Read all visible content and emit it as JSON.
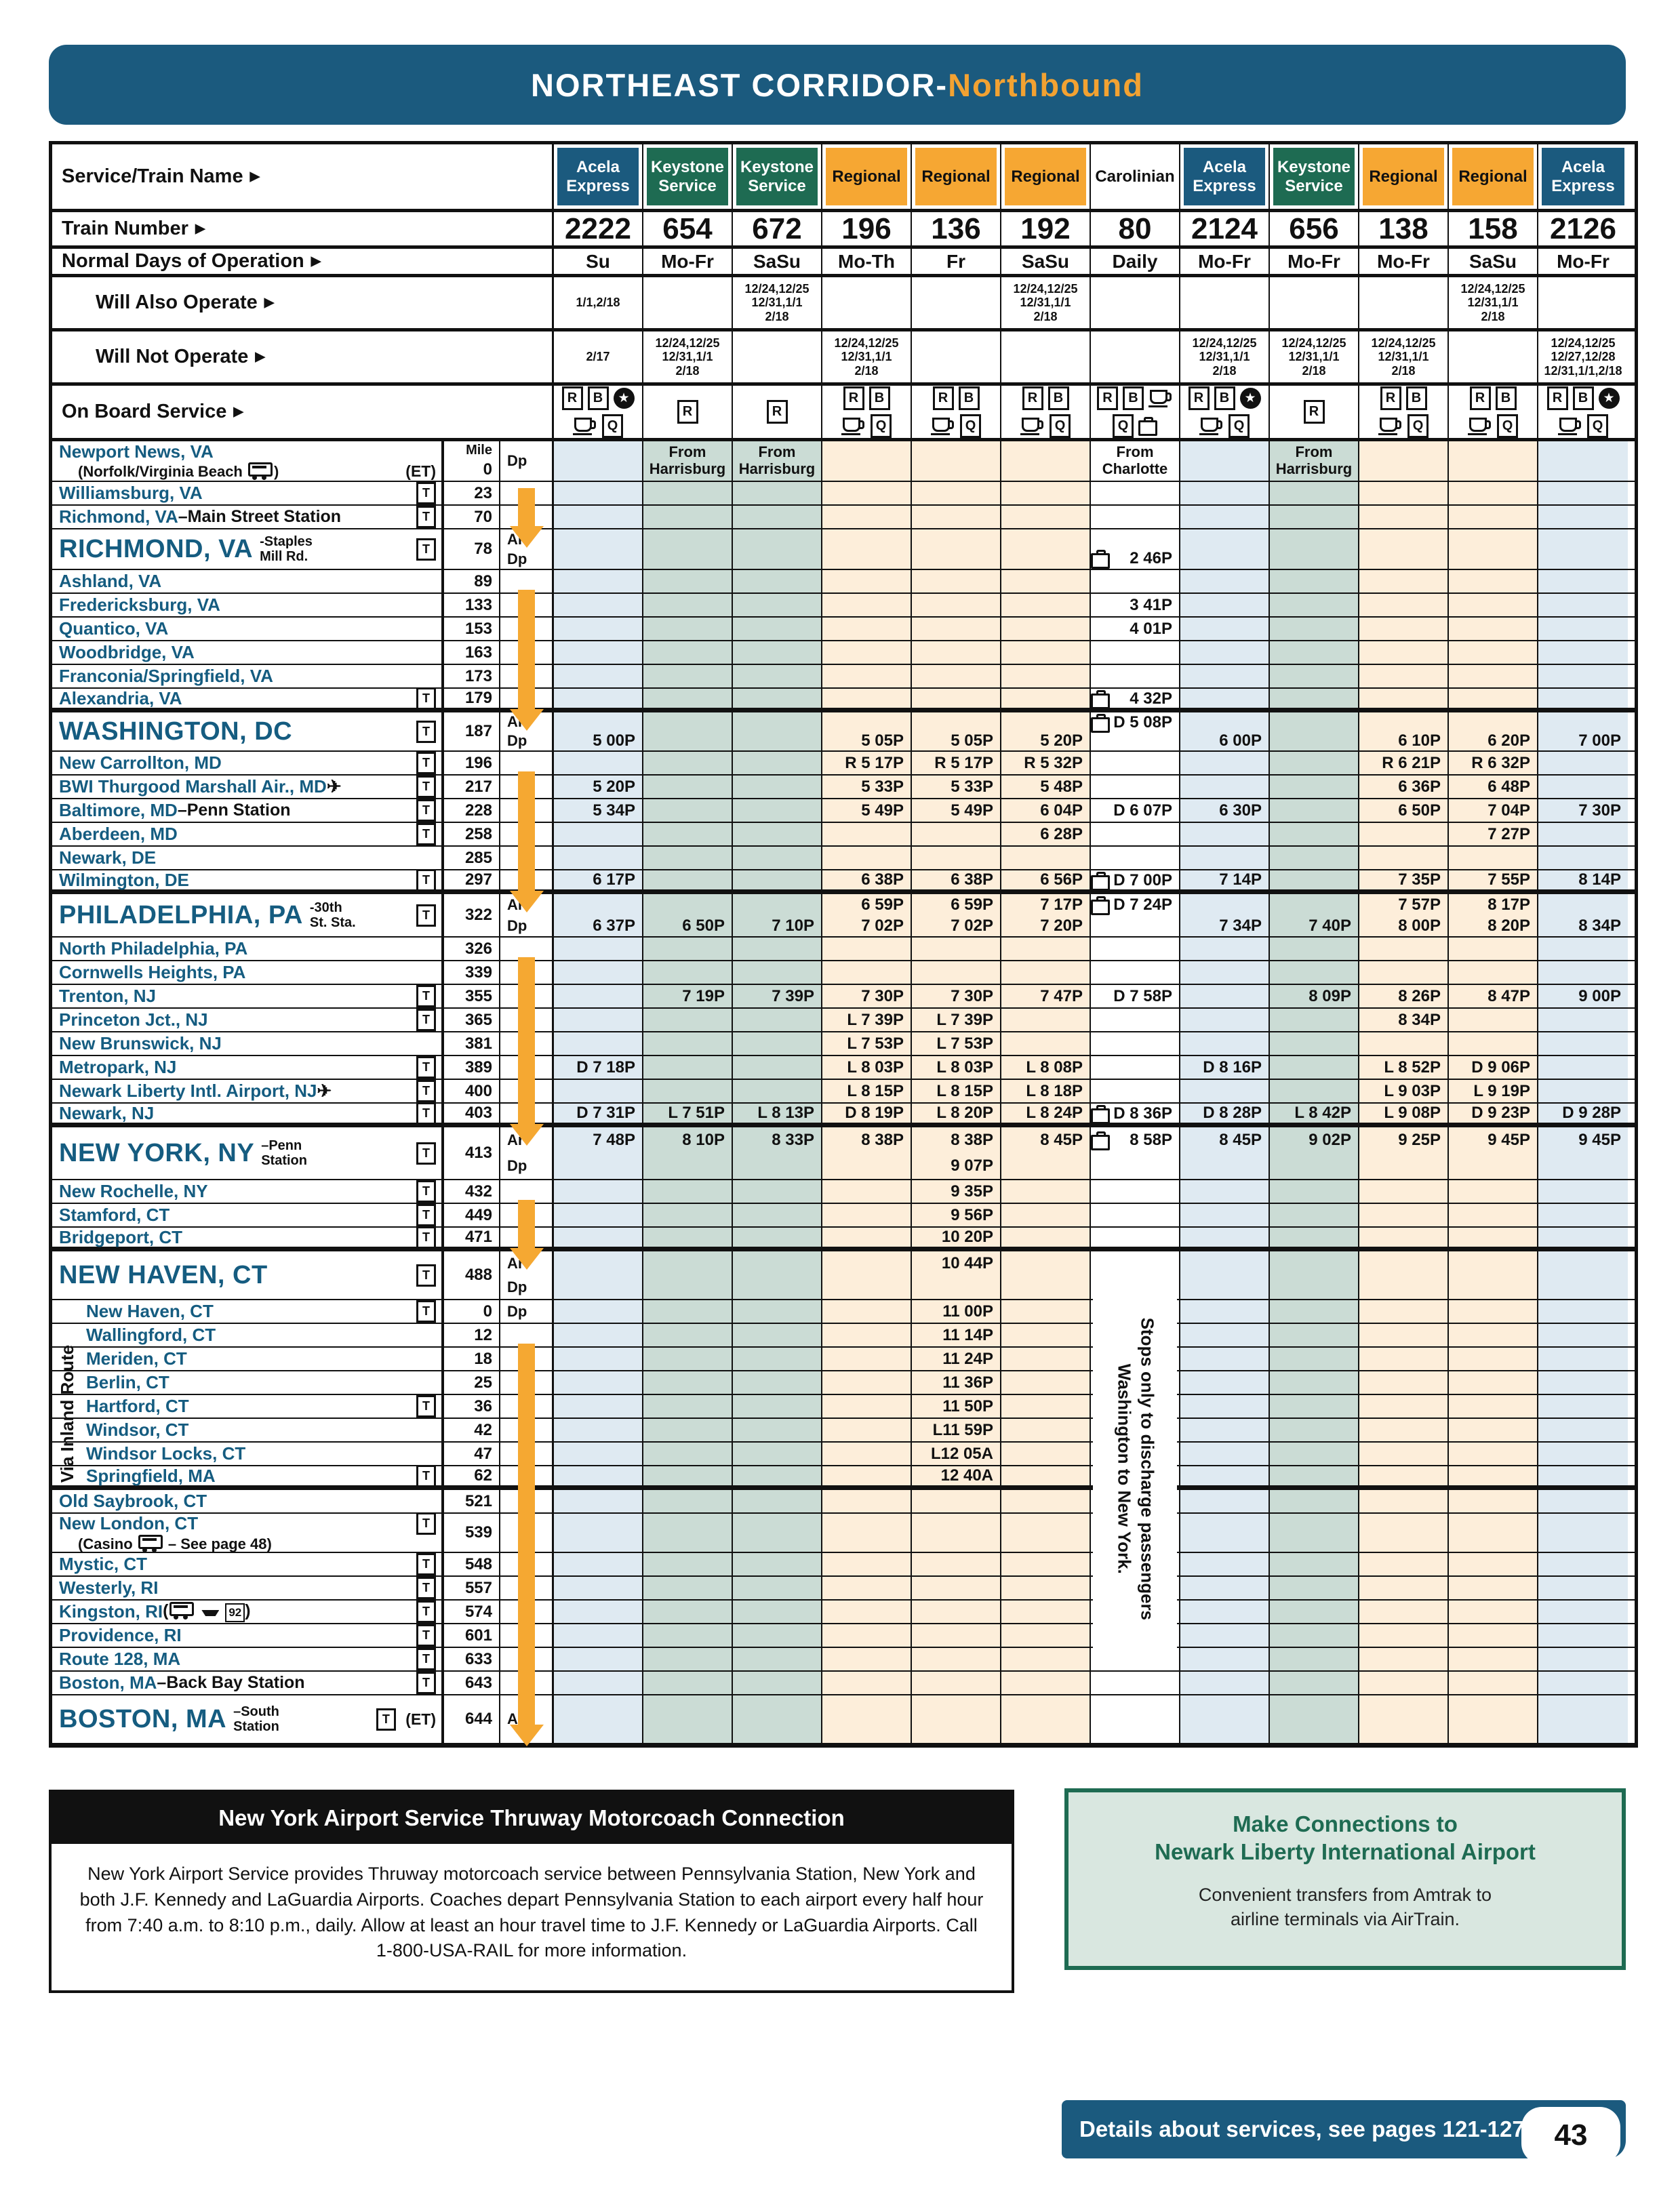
{
  "page": {
    "title_main": "NORTHEAST CORRIDOR-",
    "title_accent": "Northbound",
    "footer_text": "Details about services, see pages 121-127",
    "page_number": "43"
  },
  "colors": {
    "dark_blue": "#1b5a7e",
    "orange": "#f5a832",
    "keystone_green": "#1e6b52",
    "tint_acela": "#dfeaf2",
    "tint_keystone": "#cbdcd5",
    "tint_regional": "#fdeeda",
    "station_blue": "#155c80"
  },
  "header_labels": {
    "service": "Service/Train Name",
    "number": "Train Number",
    "days": "Normal Days of Operation",
    "also": "Will Also Operate",
    "not_operate": "Will Not Operate",
    "obs": "On Board Service"
  },
  "mile_header": "Mile",
  "via_inland": "Via Inland Route",
  "discharge_note": "Stops only to discharge passengers\nWashington to New York.",
  "columns": [
    {
      "name": "Acela\nExpress",
      "type": "acela",
      "number": "2222",
      "days": "Su",
      "also": "1/1,2/18",
      "not": "2/17",
      "service": [
        [
          "R",
          "B",
          "star"
        ],
        [
          "cup",
          "Q"
        ]
      ]
    },
    {
      "name": "Keystone\nService",
      "type": "keystone",
      "number": "654",
      "days": "Mo-Fr",
      "also": "",
      "not": "12/24,12/25\n12/31,1/1\n2/18",
      "service": [
        [
          "R"
        ]
      ]
    },
    {
      "name": "Keystone\nService",
      "type": "keystone",
      "number": "672",
      "days": "SaSu",
      "also": "12/24,12/25\n12/31,1/1\n2/18",
      "not": "",
      "service": [
        [
          "R"
        ]
      ]
    },
    {
      "name": "Regional",
      "type": "regional",
      "number": "196",
      "days": "Mo-Th",
      "also": "",
      "not": "12/24,12/25\n12/31,1/1\n2/18",
      "service": [
        [
          "R",
          "B"
        ],
        [
          "cup",
          "Q"
        ]
      ]
    },
    {
      "name": "Regional",
      "type": "regional",
      "number": "136",
      "days": "Fr",
      "also": "",
      "not": "",
      "service": [
        [
          "R",
          "B"
        ],
        [
          "cup",
          "Q"
        ]
      ]
    },
    {
      "name": "Regional",
      "type": "regional",
      "number": "192",
      "days": "SaSu",
      "also": "12/24,12/25\n12/31,1/1\n2/18",
      "not": "",
      "service": [
        [
          "R",
          "B"
        ],
        [
          "cup",
          "Q"
        ]
      ]
    },
    {
      "name": "Carolinian",
      "type": "carolinian",
      "number": "80",
      "days": "Daily",
      "also": "",
      "not": "",
      "service": [
        [
          "R",
          "B",
          "cup"
        ],
        [
          "Q",
          "bag"
        ]
      ]
    },
    {
      "name": "Acela\nExpress",
      "type": "acela",
      "number": "2124",
      "days": "Mo-Fr",
      "also": "",
      "not": "12/24,12/25\n12/31,1/1\n2/18",
      "service": [
        [
          "R",
          "B",
          "star"
        ],
        [
          "cup",
          "Q"
        ]
      ]
    },
    {
      "name": "Keystone\nService",
      "type": "keystone",
      "number": "656",
      "days": "Mo-Fr",
      "also": "",
      "not": "12/24,12/25\n12/31,1/1\n2/18",
      "service": [
        [
          "R"
        ]
      ]
    },
    {
      "name": "Regional",
      "type": "regional",
      "number": "138",
      "days": "Mo-Fr",
      "also": "",
      "not": "12/24,12/25\n12/31,1/1\n2/18",
      "service": [
        [
          "R",
          "B"
        ],
        [
          "cup",
          "Q"
        ]
      ]
    },
    {
      "name": "Regional",
      "type": "regional",
      "number": "158",
      "days": "SaSu",
      "also": "12/24,12/25\n12/31,1/1\n2/18",
      "not": "",
      "service": [
        [
          "R",
          "B"
        ],
        [
          "cup",
          "Q"
        ]
      ]
    },
    {
      "name": "Acela\nExpress",
      "type": "acela",
      "number": "2126",
      "days": "Mo-Fr",
      "also": "",
      "not": "12/24,12/25\n12/27,12/28\n12/31,1/1,2/18",
      "service": [
        [
          "R",
          "B",
          "star"
        ],
        [
          "cup",
          "Q"
        ]
      ]
    }
  ],
  "rows": [
    {
      "n": "Newport News, VA",
      "sub": "(Norfolk/Virginia Beach [bus])",
      "sr": "(ET)",
      "mile": "Mile\n0",
      "ardp": "Dp",
      "h": 60,
      "t": [
        "",
        "From\nHarrisburg",
        "From\nHarrisburg",
        "",
        "",
        "",
        "From\nCharlotte",
        "",
        "From\nHarrisburg",
        "",
        "",
        ""
      ]
    },
    {
      "n": "Williamsburg, VA",
      "right": "[T]",
      "mile": "23",
      "h": 35
    },
    {
      "n": "Richmond, VA",
      "r": "–Main Street Station",
      "right": "[T]",
      "mile": "70",
      "h": 35
    },
    {
      "n": "RICHMOND, VA",
      "big": true,
      "sub": "-Staples\nMill Rd.",
      "right": "[T]",
      "mile": "78",
      "ardp": "Ar\nDp",
      "h": 60,
      "t": [
        [
          "",
          ""
        ],
        [
          "",
          ""
        ],
        [
          "",
          ""
        ],
        [
          "",
          ""
        ],
        [
          "",
          ""
        ],
        [
          "",
          ""
        ],
        [
          "",
          "[bag] 2 46P"
        ],
        [
          "",
          ""
        ],
        [
          "",
          ""
        ],
        [
          "",
          ""
        ],
        [
          "",
          ""
        ],
        [
          "",
          ""
        ]
      ]
    },
    {
      "n": "Ashland, VA",
      "mile": "89",
      "h": 35
    },
    {
      "n": "Fredericksburg, VA",
      "mile": "133",
      "h": 35,
      "t": [
        "",
        "",
        "",
        "",
        "",
        "",
        "3 41P",
        "",
        "",
        "",
        "",
        ""
      ]
    },
    {
      "n": "Quantico, VA",
      "mile": "153",
      "h": 35,
      "t": [
        "",
        "",
        "",
        "",
        "",
        "",
        "4 01P",
        "",
        "",
        "",
        "",
        ""
      ]
    },
    {
      "n": "Woodbridge, VA",
      "mile": "163",
      "h": 35
    },
    {
      "n": "Franconia/Springfield, VA",
      "mile": "173",
      "h": 35
    },
    {
      "n": "Alexandria, VA",
      "right": "[T]",
      "mile": "179",
      "h": 35,
      "thick": true,
      "t": [
        "",
        "",
        "",
        "",
        "",
        "",
        "[bag] 4 32P",
        "",
        "",
        "",
        "",
        ""
      ]
    },
    {
      "n": "WASHINGTON, DC",
      "big": true,
      "right": "[T]",
      "mile": "187",
      "ardp": "Ar\nDp",
      "h": 58,
      "t": [
        [
          "",
          "5 00P"
        ],
        [
          "",
          ""
        ],
        [
          "",
          ""
        ],
        [
          "",
          "5 05P"
        ],
        [
          "",
          "5 05P"
        ],
        [
          "",
          "5 20P"
        ],
        [
          "[bag]D 5 08P",
          ""
        ],
        [
          "",
          "6 00P"
        ],
        [
          "",
          ""
        ],
        [
          "",
          "6 10P"
        ],
        [
          "",
          "6 20P"
        ],
        [
          "",
          "7 00P"
        ]
      ]
    },
    {
      "n": "New Carrollton, MD",
      "right": "[T]",
      "mile": "196",
      "h": 35,
      "t": [
        "",
        "",
        "",
        "R 5 17P",
        "R 5 17P",
        "R 5 32P",
        "",
        "",
        "",
        "R 6 21P",
        "R 6 32P",
        ""
      ]
    },
    {
      "n": "BWI Thurgood Marshall Air., MD",
      "r": "[plane]",
      "right": "[T]",
      "mile": "217",
      "h": 35,
      "t": [
        "5 20P",
        "",
        "",
        "5 33P",
        "5 33P",
        "5 48P",
        "",
        "",
        "",
        "6 36P",
        "6 48P",
        ""
      ]
    },
    {
      "n": "Baltimore, MD",
      "r": "–Penn Station",
      "right": "[T]",
      "mile": "228",
      "h": 35,
      "t": [
        "5 34P",
        "",
        "",
        "5 49P",
        "5 49P",
        "6 04P",
        "D 6 07P",
        "6 30P",
        "",
        "6 50P",
        "7 04P",
        "7 30P"
      ]
    },
    {
      "n": "Aberdeen, MD",
      "right": "[T]",
      "mile": "258",
      "h": 35,
      "t": [
        "",
        "",
        "",
        "",
        "",
        "6 28P",
        "",
        "",
        "",
        "",
        "7 27P",
        ""
      ]
    },
    {
      "n": "Newark, DE",
      "mile": "285",
      "h": 35
    },
    {
      "n": "Wilmington, DE",
      "right": "[T]",
      "mile": "297",
      "h": 35,
      "thick": true,
      "t": [
        "6 17P",
        "",
        "",
        "6 38P",
        "6 38P",
        "6 56P",
        "[bag]D 7 00P",
        "7 14P",
        "",
        "7 35P",
        "7 55P",
        "8 14P"
      ]
    },
    {
      "n": "PHILADELPHIA, PA",
      "big": true,
      "sub": "-30th\nSt. Sta.",
      "right": "[T]",
      "mile": "322",
      "ardp": "Ar\nDp",
      "h": 64,
      "t": [
        [
          "",
          "6 37P"
        ],
        [
          "",
          "6 50P"
        ],
        [
          "",
          "7 10P"
        ],
        [
          "6 59P",
          "7 02P"
        ],
        [
          "6 59P",
          "7 02P"
        ],
        [
          "7 17P",
          "7 20P"
        ],
        [
          "[bag]D 7 24P",
          ""
        ],
        [
          "",
          "7 34P"
        ],
        [
          "",
          "7 40P"
        ],
        [
          "7 57P",
          "8 00P"
        ],
        [
          "8 17P",
          "8 20P"
        ],
        [
          "",
          "8 34P"
        ]
      ]
    },
    {
      "n": "North Philadelphia, PA",
      "mile": "326",
      "h": 35
    },
    {
      "n": "Cornwells Heights, PA",
      "mile": "339",
      "h": 35
    },
    {
      "n": "Trenton, NJ",
      "right": "[T]",
      "mile": "355",
      "h": 35,
      "t": [
        "",
        "7 19P",
        "7 39P",
        "7 30P",
        "7 30P",
        "7 47P",
        "D 7 58P",
        "",
        "8 09P",
        "8 26P",
        "8 47P",
        "9 00P"
      ]
    },
    {
      "n": "Princeton Jct., NJ",
      "right": "[T]",
      "mile": "365",
      "h": 35,
      "t": [
        "",
        "",
        "",
        "L 7 39P",
        "L 7 39P",
        "",
        "",
        "",
        "",
        "8 34P",
        "",
        ""
      ]
    },
    {
      "n": "New Brunswick, NJ",
      "mile": "381",
      "h": 35,
      "t": [
        "",
        "",
        "",
        "L 7 53P",
        "L 7 53P",
        "",
        "",
        "",
        "",
        "",
        "",
        ""
      ]
    },
    {
      "n": "Metropark, NJ",
      "right": "[T]",
      "mile": "389",
      "h": 35,
      "t": [
        "D 7 18P",
        "",
        "",
        "L 8 03P",
        "L 8 03P",
        "L 8 08P",
        "",
        "D 8 16P",
        "",
        "L 8 52P",
        "D 9 06P",
        ""
      ]
    },
    {
      "n": "Newark Liberty Intl. Airport, NJ",
      "r": " [plane]",
      "right": "[T]",
      "mile": "400",
      "h": 35,
      "t": [
        "",
        "",
        "",
        "L 8 15P",
        "L 8 15P",
        "L 8 18P",
        "",
        "",
        "",
        "L 9 03P",
        "L 9 19P",
        ""
      ]
    },
    {
      "n": "Newark, NJ",
      "right": "[T]",
      "mile": "403",
      "h": 35,
      "thick": true,
      "t": [
        "D 7 31P",
        "L 7 51P",
        "L 8 13P",
        "D 8 19P",
        "L 8 20P",
        "L 8 24P",
        "[bag]D 8 36P",
        "D 8 28P",
        "L 8 42P",
        "L 9 08P",
        "D 9 23P",
        "D 9 28P"
      ]
    },
    {
      "n": "NEW YORK, NY",
      "big": true,
      "sub": "–Penn\nStation",
      "right": "[T]",
      "mile": "413",
      "ardp": "Ar\nDp",
      "h": 78,
      "t": [
        [
          "7 48P",
          ""
        ],
        [
          "8 10P",
          ""
        ],
        [
          "8 33P",
          ""
        ],
        [
          "8 38P",
          ""
        ],
        [
          "8 38P",
          "9 07P"
        ],
        [
          "8 45P",
          ""
        ],
        [
          "[bag] 8 58P",
          ""
        ],
        [
          "8 45P",
          ""
        ],
        [
          "9 02P",
          ""
        ],
        [
          "9 25P",
          ""
        ],
        [
          "9 45P",
          ""
        ],
        [
          "9 45P",
          ""
        ]
      ]
    },
    {
      "n": "New Rochelle, NY",
      "right": "[T]",
      "mile": "432",
      "h": 35,
      "t": [
        "",
        "",
        "",
        "",
        "9 35P",
        "",
        "",
        "",
        "",
        "",
        "",
        ""
      ]
    },
    {
      "n": "Stamford, CT",
      "right": "[T]",
      "mile": "449",
      "h": 35,
      "t": [
        "",
        "",
        "",
        "",
        "9 56P",
        "",
        "",
        "",
        "",
        "",
        "",
        ""
      ]
    },
    {
      "n": "Bridgeport, CT",
      "right": "[T]",
      "mile": "471",
      "h": 35,
      "thick": true,
      "t": [
        "",
        "",
        "",
        "",
        "10 20P",
        "",
        "",
        "",
        "",
        "",
        "",
        ""
      ]
    },
    {
      "n": "NEW HAVEN, CT",
      "big": true,
      "right": "[T]",
      "mile": "488",
      "ardp": "Ar\nDp",
      "h": 72,
      "t": [
        [
          "",
          ""
        ],
        [
          "",
          ""
        ],
        [
          "",
          ""
        ],
        [
          "",
          ""
        ],
        [
          "10 44P",
          ""
        ],
        [
          "",
          ""
        ],
        [
          "",
          ""
        ],
        [
          "",
          ""
        ],
        [
          "",
          ""
        ],
        [
          "",
          ""
        ],
        [
          "",
          ""
        ],
        [
          "",
          ""
        ]
      ]
    },
    {
      "n": "New Haven, CT",
      "right": "[T]",
      "mile": "0",
      "ardp": "Dp",
      "h": 35,
      "ind": true,
      "t": [
        "",
        "",
        "",
        "",
        "11 00P",
        "",
        "",
        "",
        "",
        "",
        "",
        ""
      ]
    },
    {
      "n": "Wallingford, CT",
      "mile": "12",
      "h": 35,
      "ind": true,
      "t": [
        "",
        "",
        "",
        "",
        "11 14P",
        "",
        "",
        "",
        "",
        "",
        "",
        ""
      ]
    },
    {
      "n": "Meriden, CT",
      "mile": "18",
      "h": 35,
      "ind": true,
      "t": [
        "",
        "",
        "",
        "",
        "11 24P",
        "",
        "",
        "",
        "",
        "",
        "",
        ""
      ]
    },
    {
      "n": "Berlin, CT",
      "mile": "25",
      "h": 35,
      "ind": true,
      "t": [
        "",
        "",
        "",
        "",
        "11 36P",
        "",
        "",
        "",
        "",
        "",
        "",
        ""
      ]
    },
    {
      "n": "Hartford, CT",
      "right": "[T]",
      "mile": "36",
      "h": 35,
      "ind": true,
      "t": [
        "",
        "",
        "",
        "",
        "11 50P",
        "",
        "",
        "",
        "",
        "",
        "",
        ""
      ]
    },
    {
      "n": "Windsor, CT",
      "mile": "42",
      "h": 35,
      "ind": true,
      "t": [
        "",
        "",
        "",
        "",
        "L11 59P",
        "",
        "",
        "",
        "",
        "",
        "",
        ""
      ]
    },
    {
      "n": "Windsor Locks, CT",
      "mile": "47",
      "h": 35,
      "ind": true,
      "t": [
        "",
        "",
        "",
        "",
        "L12 05A",
        "",
        "",
        "",
        "",
        "",
        "",
        ""
      ]
    },
    {
      "n": "Springfield, MA",
      "right": "[T]",
      "mile": "62",
      "h": 35,
      "ind": true,
      "thick": true,
      "t": [
        "",
        "",
        "",
        "",
        "12 40A",
        "",
        "",
        "",
        "",
        "",
        "",
        ""
      ]
    },
    {
      "n": "Old Saybrook, CT",
      "mile": "521",
      "h": 35
    },
    {
      "n": "New London, CT",
      "sub": "(Casino [bus] – See page 48)",
      "right": "[T]",
      "mile": "539",
      "h": 58
    },
    {
      "n": "Mystic, CT",
      "right": "[T]",
      "mile": "548",
      "h": 35
    },
    {
      "n": "Westerly, RI",
      "right": "[T]",
      "mile": "557",
      "h": 35
    },
    {
      "n": "Kingston, RI",
      "r": " ([bus] [ferry] [92])",
      "right": "[T]",
      "mile": "574",
      "h": 35
    },
    {
      "n": "Providence, RI",
      "right": "[T]",
      "mile": "601",
      "h": 35
    },
    {
      "n": "Route 128, MA",
      "right": "[T]",
      "mile": "633",
      "h": 35
    },
    {
      "n": "Boston, MA",
      "r": "–Back Bay Station",
      "right": "[T]",
      "mile": "643",
      "h": 35
    },
    {
      "n": "BOSTON, MA",
      "big": true,
      "sub": "–South\nStation",
      "right": "[T] (ET)",
      "mile": "644",
      "ardp": "Ar",
      "h": 72,
      "thick": false
    }
  ],
  "airport_box": {
    "title": "New York Airport Service Thruway Motorcoach Connection",
    "body": "New York Airport Service provides Thruway motorcoach service between Pennsylvania Station, New York and both J.F. Kennedy and LaGuardia Airports. Coaches depart Pennsylvania Station to each airport every half hour from 7:40 a.m. to 8:10 p.m., daily. Allow at least an hour travel time to J.F. Kennedy or LaGuardia Airports. Call 1-800-USA-RAIL for more information."
  },
  "connections_box": {
    "title": "Make Connections to\nNewark Liberty International Airport",
    "body": "Convenient transfers from Amtrak to\nairline terminals via AirTrain."
  }
}
